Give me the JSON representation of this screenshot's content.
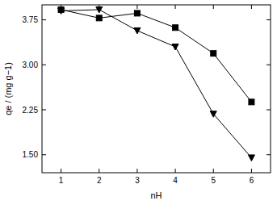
{
  "chart_data": {
    "type": "line",
    "x_label": "nH",
    "y_label": "qe / (mg g−1)",
    "x": [
      1,
      2,
      3,
      4,
      5,
      6
    ],
    "series": [
      {
        "color": "#000000",
        "marker": "square",
        "line_style": "solid",
        "values": [
          3.92,
          3.78,
          3.86,
          3.62,
          3.19,
          2.38
        ]
      },
      {
        "color": "#000000",
        "marker": "triangle-down",
        "line_style": "solid",
        "values": [
          3.9,
          3.92,
          3.57,
          3.3,
          2.18,
          1.45
        ]
      }
    ],
    "xlim": [
      0.5,
      6.5
    ],
    "xticks": [
      1,
      2,
      3,
      4,
      5,
      6
    ],
    "ylim": [
      1.2,
      4.0
    ],
    "yticks": [
      {
        "value": 1.5,
        "label": "1.50"
      },
      {
        "value": 2.25,
        "label": "2.25"
      },
      {
        "value": 3.0,
        "label": "3.00"
      },
      {
        "value": 3.75,
        "label": "3.75"
      }
    ],
    "grid": false
  }
}
